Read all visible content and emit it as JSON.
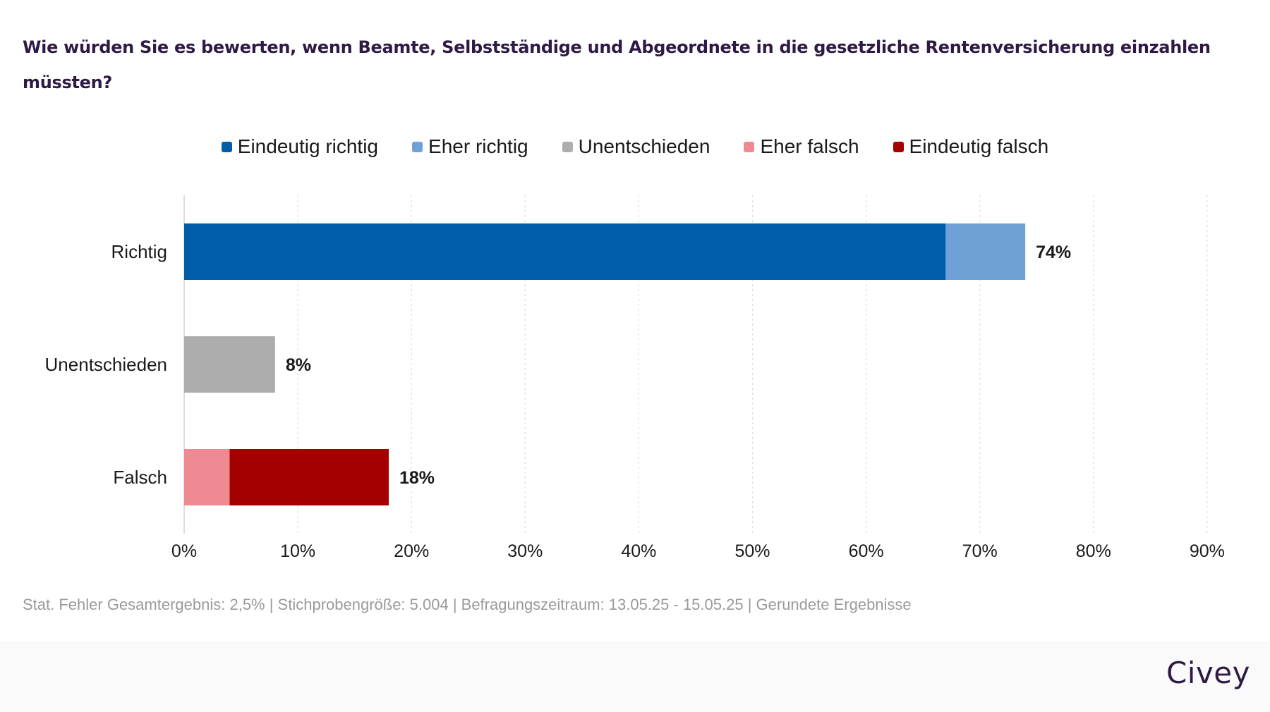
{
  "title": "Wie würden Sie es bewerten, wenn Beamte, Selbstständige und Abgeordnete in die gesetzliche Rentenversicherung einzahlen müssten?",
  "footnote": "Stat. Fehler Gesamtergebnis: 2,5% | Stichprobengröße: 5.004 | Befragungszeitraum: 13.05.25 - 15.05.25 | Gerundete Ergebnisse",
  "logo": "Civey",
  "chart_data": {
    "type": "bar",
    "orientation": "horizontal",
    "stacked": true,
    "title": "Wie würden Sie es bewerten, wenn Beamte, Selbstständige und Abgeordnete in die gesetzliche Rentenversicherung einzahlen müssten?",
    "xlabel": "",
    "ylabel": "",
    "categories": [
      "Richtig",
      "Unentschieden",
      "Falsch"
    ],
    "series": [
      {
        "name": "Eindeutig richtig",
        "color": "#005ea8",
        "values": [
          67,
          0,
          0
        ]
      },
      {
        "name": "Eher richtig",
        "color": "#6fa1d6",
        "values": [
          7,
          0,
          0
        ]
      },
      {
        "name": "Unentschieden",
        "color": "#adadad",
        "values": [
          0,
          8,
          0
        ]
      },
      {
        "name": "Eher falsch",
        "color": "#f08a92",
        "values": [
          0,
          0,
          4
        ]
      },
      {
        "name": "Eindeutig falsch",
        "color": "#a50000",
        "values": [
          0,
          0,
          14
        ]
      }
    ],
    "totals": [
      "74%",
      "8%",
      "18%"
    ],
    "xlim": [
      0,
      90
    ],
    "xticks": [
      "0%",
      "10%",
      "20%",
      "30%",
      "40%",
      "50%",
      "60%",
      "70%",
      "80%",
      "90%"
    ],
    "grid": true,
    "legend_position": "top-center"
  }
}
